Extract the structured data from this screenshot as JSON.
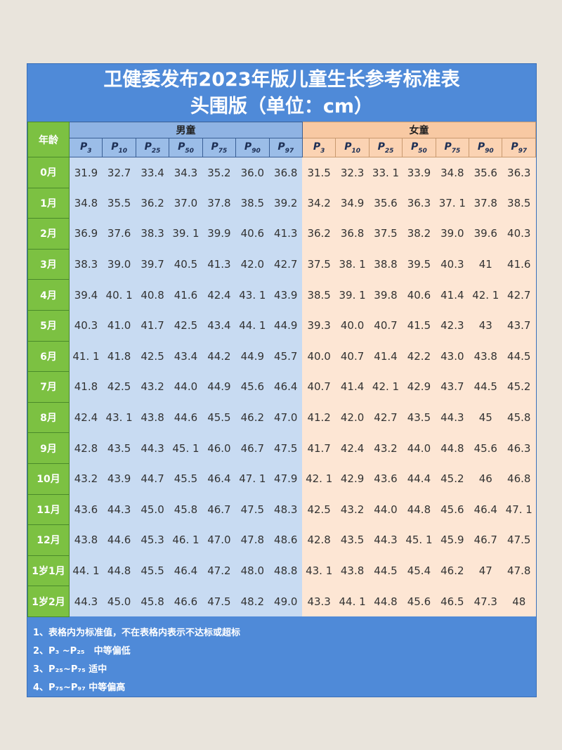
{
  "title": {
    "line1": "卫健委发布2023年版儿童生长参考标准表",
    "line2": "头围版（单位：cm）"
  },
  "header": {
    "age": "年龄",
    "boys": "男童",
    "girls": "女童",
    "percentiles": [
      "3",
      "10",
      "25",
      "50",
      "75",
      "90",
      "97"
    ],
    "p": "P"
  },
  "rows": [
    {
      "age": "0月",
      "boys": [
        "31.9",
        "32.7",
        "33.4",
        "34.3",
        "35.2",
        "36.0",
        "36.8"
      ],
      "girls": [
        "31.5",
        "32.3",
        "33. 1",
        "33.9",
        "34.8",
        "35.6",
        "36.3"
      ]
    },
    {
      "age": "1月",
      "boys": [
        "34.8",
        "35.5",
        "36.2",
        "37.0",
        "37.8",
        "38.5",
        "39.2"
      ],
      "girls": [
        "34.2",
        "34.9",
        "35.6",
        "36.3",
        "37. 1",
        "37.8",
        "38.5"
      ]
    },
    {
      "age": "2月",
      "boys": [
        "36.9",
        "37.6",
        "38.3",
        "39. 1",
        "39.9",
        "40.6",
        "41.3"
      ],
      "girls": [
        "36.2",
        "36.8",
        "37.5",
        "38.2",
        "39.0",
        "39.6",
        "40.3"
      ]
    },
    {
      "age": "3月",
      "boys": [
        "38.3",
        "39.0",
        "39.7",
        "40.5",
        "41.3",
        "42.0",
        "42.7"
      ],
      "girls": [
        "37.5",
        "38. 1",
        "38.8",
        "39.5",
        "40.3",
        "41",
        "41.6"
      ]
    },
    {
      "age": "4月",
      "boys": [
        "39.4",
        "40. 1",
        "40.8",
        "41.6",
        "42.4",
        "43. 1",
        "43.9"
      ],
      "girls": [
        "38.5",
        "39. 1",
        "39.8",
        "40.6",
        "41.4",
        "42. 1",
        "42.7"
      ]
    },
    {
      "age": "5月",
      "boys": [
        "40.3",
        "41.0",
        "41.7",
        "42.5",
        "43.4",
        "44. 1",
        "44.9"
      ],
      "girls": [
        "39.3",
        "40.0",
        "40.7",
        "41.5",
        "42.3",
        "43",
        "43.7"
      ]
    },
    {
      "age": "6月",
      "boys": [
        "41. 1",
        "41.8",
        "42.5",
        "43.4",
        "44.2",
        "44.9",
        "45.7"
      ],
      "girls": [
        "40.0",
        "40.7",
        "41.4",
        "42.2",
        "43.0",
        "43.8",
        "44.5"
      ]
    },
    {
      "age": "7月",
      "boys": [
        "41.8",
        "42.5",
        "43.2",
        "44.0",
        "44.9",
        "45.6",
        "46.4"
      ],
      "girls": [
        "40.7",
        "41.4",
        "42. 1",
        "42.9",
        "43.7",
        "44.5",
        "45.2"
      ]
    },
    {
      "age": "8月",
      "boys": [
        "42.4",
        "43. 1",
        "43.8",
        "44.6",
        "45.5",
        "46.2",
        "47.0"
      ],
      "girls": [
        "41.2",
        "42.0",
        "42.7",
        "43.5",
        "44.3",
        "45",
        "45.8"
      ]
    },
    {
      "age": "9月",
      "boys": [
        "42.8",
        "43.5",
        "44.3",
        "45. 1",
        "46.0",
        "46.7",
        "47.5"
      ],
      "girls": [
        "41.7",
        "42.4",
        "43.2",
        "44.0",
        "44.8",
        "45.6",
        "46.3"
      ]
    },
    {
      "age": "10月",
      "boys": [
        "43.2",
        "43.9",
        "44.7",
        "45.5",
        "46.4",
        "47. 1",
        "47.9"
      ],
      "girls": [
        "42. 1",
        "42.9",
        "43.6",
        "44.4",
        "45.2",
        "46",
        "46.8"
      ]
    },
    {
      "age": "11月",
      "boys": [
        "43.6",
        "44.3",
        "45.0",
        "45.8",
        "46.7",
        "47.5",
        "48.3"
      ],
      "girls": [
        "42.5",
        "43.2",
        "44.0",
        "44.8",
        "45.6",
        "46.4",
        "47. 1"
      ]
    },
    {
      "age": "12月",
      "boys": [
        "43.8",
        "44.6",
        "45.3",
        "46. 1",
        "47.0",
        "47.8",
        "48.6"
      ],
      "girls": [
        "42.8",
        "43.5",
        "44.3",
        "45. 1",
        "45.9",
        "46.7",
        "47.5"
      ]
    },
    {
      "age": "1岁1月",
      "boys": [
        "44. 1",
        "44.8",
        "45.5",
        "46.4",
        "47.2",
        "48.0",
        "48.8"
      ],
      "girls": [
        "43. 1",
        "43.8",
        "44.5",
        "45.4",
        "46.2",
        "47",
        "47.8"
      ]
    },
    {
      "age": "1岁2月",
      "boys": [
        "44.3",
        "45.0",
        "45.8",
        "46.6",
        "47.5",
        "48.2",
        "49.0"
      ],
      "girls": [
        "43.3",
        "44. 1",
        "44.8",
        "45.6",
        "46.5",
        "47.3",
        "48"
      ]
    }
  ],
  "notes": [
    "1、表格内为标准值，不在表格内表示不达标或超标",
    "2、P₃ ~P₂₅　中等偏低",
    "3、P₂₅~P₇₅  适中",
    "4、P₇₅~P₉₇  中等偏高"
  ],
  "colors": {
    "title_bg": "#4f8ad8",
    "age_bg": "#7cc142",
    "boys_bg": "#c8dbf2",
    "girls_bg": "#fde6d4"
  }
}
